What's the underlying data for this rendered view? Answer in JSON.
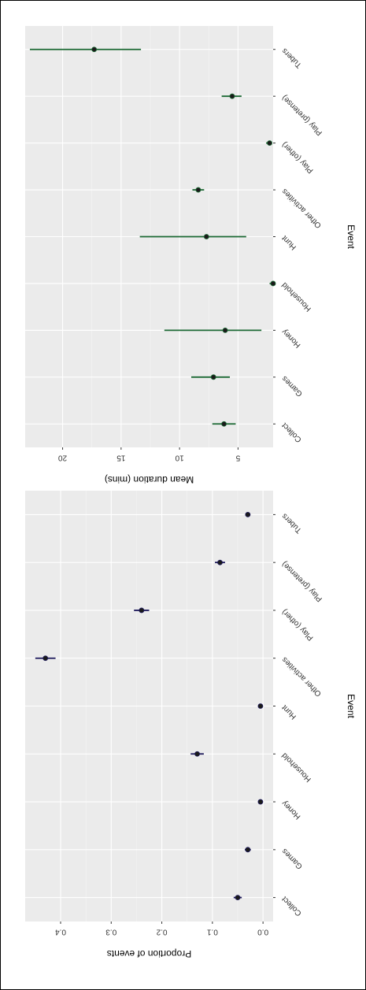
{
  "colors": {
    "proportion_series": "#1e1a5c",
    "duration_series": "#1c6a34",
    "point": "#1a1a1a"
  },
  "chart_data": [
    {
      "type": "scatter",
      "style": "point-with-error-bars",
      "rotation": "180deg (figure printed upside down)",
      "categories": [
        "Collect",
        "Games",
        "Honey",
        "Household",
        "Hunt",
        "Other activities",
        "Play (other)",
        "Play (pretense)",
        "Tubers"
      ],
      "xlabel": "Event",
      "ylabel": "Proportion of events",
      "ylim": [
        -0.02,
        0.47
      ],
      "yticks": [
        0.0,
        0.1,
        0.2,
        0.3,
        0.4
      ],
      "ytick_labels": [
        "0.0",
        "0.1",
        "0.2",
        "0.3",
        "0.4"
      ],
      "grid": true,
      "series": [
        {
          "values": [
            0.05,
            0.03,
            0.005,
            0.13,
            0.005,
            0.43,
            0.24,
            0.085,
            0.03
          ],
          "lower": [
            0.042,
            0.024,
            0.003,
            0.117,
            0.003,
            0.41,
            0.225,
            0.075,
            0.025
          ],
          "upper": [
            0.058,
            0.036,
            0.007,
            0.143,
            0.007,
            0.45,
            0.255,
            0.095,
            0.035
          ]
        }
      ]
    },
    {
      "type": "scatter",
      "style": "point-with-error-bars",
      "rotation": "180deg (figure printed upside down)",
      "categories": [
        "Collect",
        "Games",
        "Honey",
        "Household",
        "Hunt",
        "Other activities",
        "Play (other)",
        "Play (pretense)",
        "Tubers"
      ],
      "xlabel": "Event",
      "ylabel": "Mean duration (mins)",
      "ylim": [
        2.0,
        23.2
      ],
      "yticks": [
        5,
        10,
        15,
        20
      ],
      "ytick_labels": [
        "5",
        "10",
        "15",
        "20"
      ],
      "grid": true,
      "series": [
        {
          "values": [
            6.2,
            7.1,
            6.1,
            2.0,
            7.7,
            8.4,
            2.3,
            5.5,
            17.3
          ],
          "lower": [
            5.2,
            5.7,
            3.0,
            1.8,
            4.3,
            7.9,
            2.1,
            4.7,
            13.3
          ],
          "upper": [
            7.2,
            9.0,
            11.3,
            2.3,
            13.4,
            8.9,
            2.6,
            6.4,
            22.8
          ]
        }
      ]
    }
  ]
}
